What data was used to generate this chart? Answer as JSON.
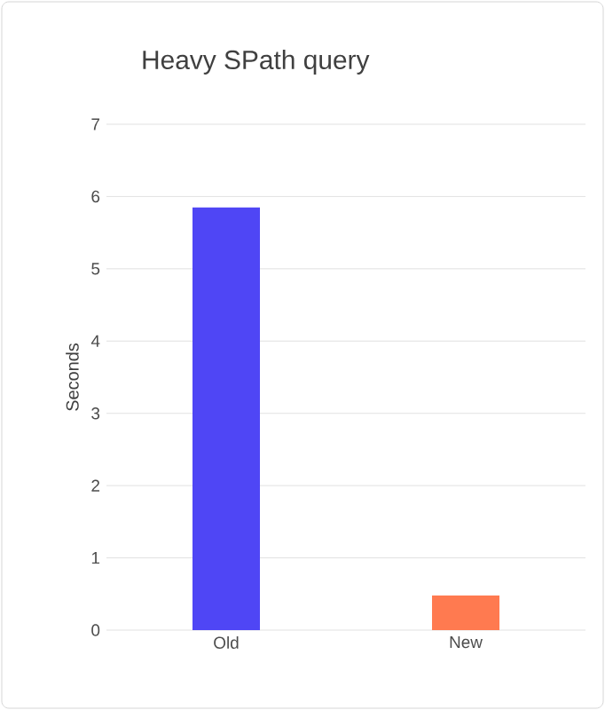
{
  "chart_data": {
    "type": "bar",
    "title": "Heavy SPath query",
    "ylabel": "Seconds",
    "categories": [
      "Old",
      "New"
    ],
    "values": [
      5.85,
      0.48
    ],
    "colors": [
      "#4f46f5",
      "#ff7a50"
    ],
    "ylim": [
      0,
      7
    ],
    "yticks": [
      0,
      1,
      2,
      3,
      4,
      5,
      6,
      7
    ],
    "grid": "y"
  }
}
